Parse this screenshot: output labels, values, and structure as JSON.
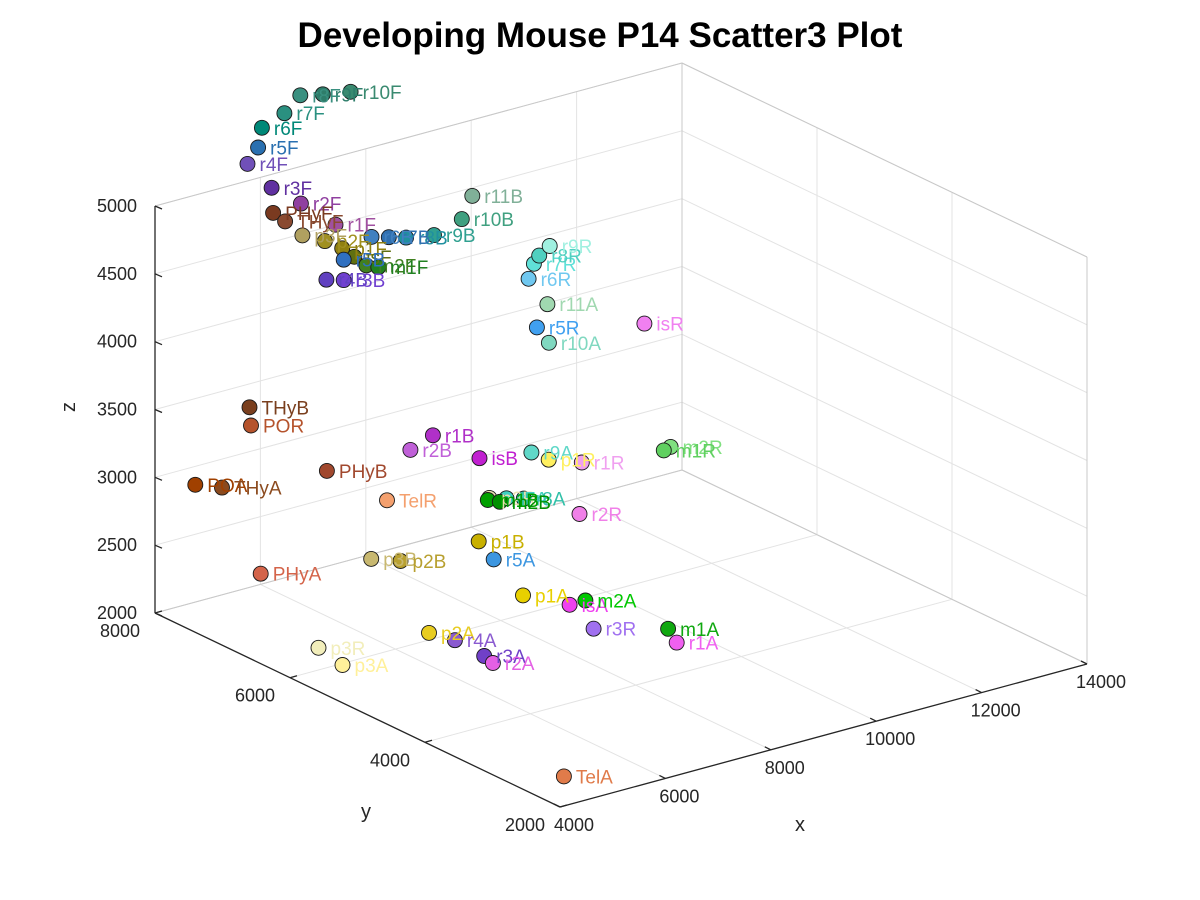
{
  "chart_data": {
    "type": "scatter",
    "title": "Developing Mouse P14 Scatter3 Plot",
    "xlabel": "x",
    "ylabel": "y",
    "zlabel": "z",
    "xlim": [
      4000,
      14000
    ],
    "ylim": [
      2000,
      8000
    ],
    "zlim": [
      2000,
      5000
    ],
    "xticks": [
      {
        "v": 4000,
        "t": "4000"
      },
      {
        "v": 6000,
        "t": "6000"
      },
      {
        "v": 8000,
        "t": "8000"
      },
      {
        "v": 10000,
        "t": "10000"
      },
      {
        "v": 12000,
        "t": "12000"
      },
      {
        "v": 14000,
        "t": "14000"
      }
    ],
    "yticks": [
      {
        "v": 2000,
        "t": "2000"
      },
      {
        "v": 4000,
        "t": "4000"
      },
      {
        "v": 6000,
        "t": "6000"
      },
      {
        "v": 8000,
        "t": "8000"
      }
    ],
    "zticks": [
      {
        "v": 2000,
        "t": "2000"
      },
      {
        "v": 2500,
        "t": "2500"
      },
      {
        "v": 3000,
        "t": "3000"
      },
      {
        "v": 3500,
        "t": "3500"
      },
      {
        "v": 4000,
        "t": "4000"
      },
      {
        "v": 4500,
        "t": "4500"
      },
      {
        "v": 5000,
        "t": "5000"
      }
    ],
    "grid": true,
    "points": [
      {
        "label": "TelA",
        "x": 4650,
        "y": 2450,
        "z": 2050,
        "color": "#e07b4a"
      },
      {
        "label": "POA",
        "x": 3100,
        "y": 6700,
        "z": 3350,
        "color": "#a04000"
      },
      {
        "label": "THyA",
        "x": 3350,
        "y": 6500,
        "z": 3350,
        "color": "#8b4a1e"
      },
      {
        "label": "POR",
        "x": 3900,
        "y": 6500,
        "z": 3750,
        "color": "#b5532c"
      },
      {
        "label": "THyB",
        "x": 4000,
        "y": 6600,
        "z": 3850,
        "color": "#7a3f1e"
      },
      {
        "label": "PHyB",
        "x": 4700,
        "y": 6000,
        "z": 3450,
        "color": "#a1482e"
      },
      {
        "label": "PHyA",
        "x": 3700,
        "y": 6200,
        "z": 2750,
        "color": "#d4644a"
      },
      {
        "label": "TelR",
        "x": 5200,
        "y": 5500,
        "z": 3300,
        "color": "#f4a06e"
      },
      {
        "label": "p3B",
        "x": 4900,
        "y": 5500,
        "z": 2900,
        "color": "#c8b870"
      },
      {
        "label": "p2B",
        "x": 5200,
        "y": 5300,
        "z": 2900,
        "color": "#b8a030"
      },
      {
        "label": "p3R",
        "x": 3900,
        "y": 5500,
        "z": 2350,
        "color": "#f2eebb"
      },
      {
        "label": "p3A",
        "x": 4100,
        "y": 5300,
        "z": 2250,
        "color": "#fff09a"
      },
      {
        "label": "p2A",
        "x": 5100,
        "y": 4800,
        "z": 2500,
        "color": "#e8cc20"
      },
      {
        "label": "r4A",
        "x": 5400,
        "y": 4650,
        "z": 2450,
        "color": "#8a5ad0"
      },
      {
        "label": "r3A",
        "x": 5700,
        "y": 4450,
        "z": 2350,
        "color": "#7040c8"
      },
      {
        "label": "r2A",
        "x": 5800,
        "y": 4400,
        "z": 2300,
        "color": "#e460e4"
      },
      {
        "label": "p1A",
        "x": 6500,
        "y": 4500,
        "z": 2700,
        "color": "#e8d000"
      },
      {
        "label": "p1B",
        "x": 6300,
        "y": 5000,
        "z": 3000,
        "color": "#c8b000"
      },
      {
        "label": "r5A",
        "x": 6200,
        "y": 4700,
        "z": 2950,
        "color": "#3c96e0"
      },
      {
        "label": "isA",
        "x": 7000,
        "y": 4200,
        "z": 2650,
        "color": "#f040f0"
      },
      {
        "label": "m2A",
        "x": 7300,
        "y": 4200,
        "z": 2650,
        "color": "#00c800"
      },
      {
        "label": "r3R",
        "x": 7200,
        "y": 4000,
        "z": 2500,
        "color": "#a070f0"
      },
      {
        "label": "m1A",
        "x": 8100,
        "y": 3600,
        "z": 2500,
        "color": "#10a810"
      },
      {
        "label": "r1A",
        "x": 8200,
        "y": 3550,
        "z": 2400,
        "color": "#f060f0"
      },
      {
        "label": "r2R",
        "x": 7700,
        "y": 4600,
        "z": 3150,
        "color": "#f080e8"
      },
      {
        "label": "p2R",
        "x": 6500,
        "y": 5000,
        "z": 3300,
        "color": "#e8e0b0"
      },
      {
        "label": "r7A",
        "x": 6700,
        "y": 4900,
        "z": 3300,
        "color": "#40d0c0"
      },
      {
        "label": "r8A",
        "x": 6900,
        "y": 4800,
        "z": 3300,
        "color": "#30c0a8"
      },
      {
        "label": "m1B",
        "x": 6600,
        "y": 5100,
        "z": 3250,
        "color": "#00a000"
      },
      {
        "label": "m2B",
        "x": 6700,
        "y": 5000,
        "z": 3250,
        "color": "#009000"
      },
      {
        "label": "isB",
        "x": 6700,
        "y": 5300,
        "z": 3500,
        "color": "#c020d0"
      },
      {
        "label": "r1B",
        "x": 6200,
        "y": 5600,
        "z": 3650,
        "color": "#b030c8"
      },
      {
        "label": "r2B",
        "x": 5900,
        "y": 5700,
        "z": 3550,
        "color": "#c060d8"
      },
      {
        "label": "r9A",
        "x": 7300,
        "y": 5000,
        "z": 3550,
        "color": "#60d8c8"
      },
      {
        "label": "p1R",
        "x": 7500,
        "y": 4900,
        "z": 3500,
        "color": "#fff060"
      },
      {
        "label": "r1R",
        "x": 8000,
        "y": 4800,
        "z": 3450,
        "color": "#f0a0f0"
      },
      {
        "label": "m2R",
        "x": 9300,
        "y": 4500,
        "z": 3500,
        "color": "#80e080"
      },
      {
        "label": "m1R",
        "x": 9300,
        "y": 4600,
        "z": 3450,
        "color": "#60d060"
      },
      {
        "label": "isR",
        "x": 9700,
        "y": 5200,
        "z": 4200,
        "color": "#f080f0"
      },
      {
        "label": "r10A",
        "x": 8400,
        "y": 5600,
        "z": 4100,
        "color": "#80d8c0"
      },
      {
        "label": "r5R",
        "x": 8300,
        "y": 5700,
        "z": 4200,
        "color": "#40a0f0"
      },
      {
        "label": "r11A",
        "x": 8500,
        "y": 5700,
        "z": 4350,
        "color": "#a0d8b0"
      },
      {
        "label": "r6R",
        "x": 8400,
        "y": 5900,
        "z": 4500,
        "color": "#70c8f0"
      },
      {
        "label": "r7R",
        "x": 8500,
        "y": 5900,
        "z": 4600,
        "color": "#60e0d8"
      },
      {
        "label": "r8R",
        "x": 8600,
        "y": 5900,
        "z": 4650,
        "color": "#50d0c0"
      },
      {
        "label": "r9R",
        "x": 8800,
        "y": 5900,
        "z": 4700,
        "color": "#a0f0e0"
      },
      {
        "label": "r11B",
        "x": 8100,
        "y": 6500,
        "z": 5000,
        "color": "#80b098"
      },
      {
        "label": "r10B",
        "x": 7900,
        "y": 6500,
        "z": 4850,
        "color": "#40a080"
      },
      {
        "label": "r9B",
        "x": 7500,
        "y": 6600,
        "z": 4750,
        "color": "#30a090"
      },
      {
        "label": "r8B",
        "x": 7100,
        "y": 6700,
        "z": 4750,
        "color": "#2090a0"
      },
      {
        "label": "r7B",
        "x": 6900,
        "y": 6800,
        "z": 4750,
        "color": "#3070b0"
      },
      {
        "label": "r6B",
        "x": 6700,
        "y": 6900,
        "z": 4750,
        "color": "#4080c0"
      },
      {
        "label": "r10F",
        "x": 7200,
        "y": 7600,
        "z": 5600,
        "color": "#3a8a70"
      },
      {
        "label": "r9F",
        "x": 6800,
        "y": 7700,
        "z": 5600,
        "color": "#2e7d6a"
      },
      {
        "label": "r8F",
        "x": 6500,
        "y": 7800,
        "z": 5600,
        "color": "#3a9080"
      },
      {
        "label": "r7F",
        "x": 6200,
        "y": 7800,
        "z": 5500,
        "color": "#2a9080"
      },
      {
        "label": "r6F",
        "x": 5900,
        "y": 7900,
        "z": 5400,
        "color": "#008878"
      },
      {
        "label": "r5F",
        "x": 5700,
        "y": 7800,
        "z": 5300,
        "color": "#2a70b0"
      },
      {
        "label": "r4F",
        "x": 5500,
        "y": 7800,
        "z": 5200,
        "color": "#7050b8"
      },
      {
        "label": "r3F",
        "x": 5700,
        "y": 7600,
        "z": 5050,
        "color": "#6030a0"
      },
      {
        "label": "r2F",
        "x": 6000,
        "y": 7400,
        "z": 4950,
        "color": "#9040a0"
      },
      {
        "label": "r1F",
        "x": 6400,
        "y": 7200,
        "z": 4800,
        "color": "#a050a0"
      },
      {
        "label": "PHyF",
        "x": 5600,
        "y": 7500,
        "z": 4900,
        "color": "#7a3a20"
      },
      {
        "label": "THyF",
        "x": 5700,
        "y": 7400,
        "z": 4850,
        "color": "#8a4a30"
      },
      {
        "label": "p3F",
        "x": 5900,
        "y": 7300,
        "z": 4750,
        "color": "#b0a060"
      },
      {
        "label": "p2F",
        "x": 6200,
        "y": 7200,
        "z": 4700,
        "color": "#a09020"
      },
      {
        "label": "p1F",
        "x": 6400,
        "y": 7100,
        "z": 4650,
        "color": "#908010"
      },
      {
        "label": "isF",
        "x": 6500,
        "y": 7000,
        "z": 4600,
        "color": "#607010"
      },
      {
        "label": "m2F",
        "x": 6600,
        "y": 6900,
        "z": 4550,
        "color": "#408020"
      },
      {
        "label": "m1F",
        "x": 6700,
        "y": 6800,
        "z": 4550,
        "color": "#208020"
      },
      {
        "label": "r5B",
        "x": 6300,
        "y": 7000,
        "z": 4600,
        "color": "#3070c0"
      },
      {
        "label": "r4B",
        "x": 6100,
        "y": 7100,
        "z": 4450,
        "color": "#6040c0"
      },
      {
        "label": "r3B",
        "x": 6300,
        "y": 7000,
        "z": 4450,
        "color": "#7040d0"
      }
    ]
  }
}
